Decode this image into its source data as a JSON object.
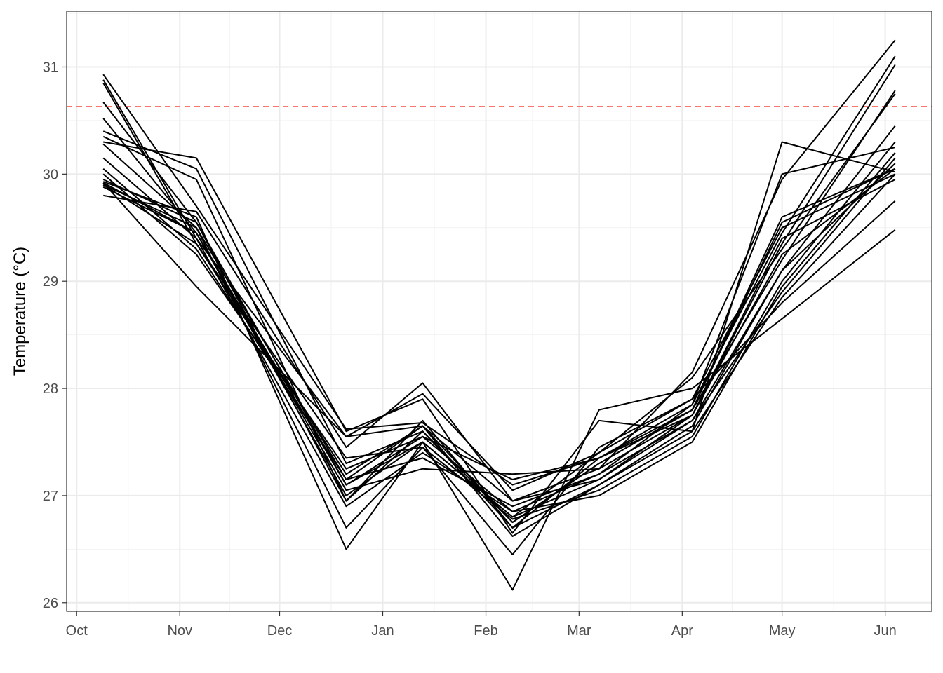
{
  "chart_data": {
    "type": "line",
    "title": "",
    "xlabel": "",
    "ylabel": "Temperature (°C)",
    "x_ticks": [
      "Oct",
      "Nov",
      "Dec",
      "Jan",
      "Feb",
      "Mar",
      "Apr",
      "May",
      "Jun"
    ],
    "y_ticks": [
      "26",
      "27",
      "28",
      "29",
      "30",
      "31"
    ],
    "ylim": [
      25.92,
      31.52
    ],
    "xlim": [
      "2020-09-28",
      "2021-06-15"
    ],
    "grid": true,
    "legend": "none",
    "threshold": {
      "value": 30.63,
      "color": "#f8766d",
      "style": "dashed"
    },
    "series_color": "#000000",
    "x": [
      "2020-10-09",
      "2020-11-06",
      "2020-12-21",
      "2021-01-13",
      "2021-02-09",
      "2021-03-07",
      "2021-04-04",
      "2021-05-01",
      "2021-06-04"
    ],
    "series": [
      {
        "values": [
          30.93,
          29.7,
          27.62,
          27.68,
          27.1,
          27.35,
          27.8,
          29.55,
          30.05
        ]
      },
      {
        "values": [
          30.88,
          29.4,
          27.55,
          27.95,
          27.05,
          27.4,
          28.1,
          29.3,
          30.75
        ]
      },
      {
        "values": [
          30.85,
          29.35,
          27.2,
          27.65,
          26.95,
          27.25,
          28.15,
          29.95,
          31.25
        ]
      },
      {
        "values": [
          30.67,
          29.55,
          27.1,
          27.55,
          26.85,
          27.2,
          27.85,
          29.45,
          31.1
        ]
      },
      {
        "values": [
          30.52,
          29.45,
          27.0,
          27.5,
          26.8,
          27.15,
          27.75,
          29.35,
          31.02
        ]
      },
      {
        "values": [
          30.4,
          30.05,
          27.3,
          27.6,
          26.75,
          27.3,
          27.8,
          29.2,
          30.78
        ]
      },
      {
        "values": [
          30.35,
          29.95,
          26.95,
          27.7,
          26.7,
          27.1,
          27.65,
          29.1,
          30.45
        ]
      },
      {
        "values": [
          30.3,
          30.15,
          27.6,
          27.9,
          26.65,
          27.7,
          27.6,
          30.3,
          30.02
        ]
      },
      {
        "values": [
          30.28,
          29.5,
          26.7,
          27.45,
          26.78,
          27.05,
          27.55,
          29.0,
          30.3
        ]
      },
      {
        "values": [
          30.15,
          29.4,
          26.9,
          27.4,
          26.85,
          27.0,
          27.5,
          28.95,
          30.2
        ]
      },
      {
        "values": [
          30.05,
          29.3,
          27.15,
          27.35,
          26.9,
          27.2,
          27.7,
          28.9,
          30.15
        ]
      },
      {
        "values": [
          30.0,
          29.25,
          27.25,
          27.55,
          27.15,
          27.35,
          27.85,
          30.0,
          30.25
        ]
      },
      {
        "values": [
          29.93,
          29.6,
          26.5,
          27.5,
          26.12,
          27.8,
          28.0,
          28.65,
          29.48
        ]
      },
      {
        "values": [
          29.9,
          29.35,
          27.35,
          27.45,
          26.45,
          27.45,
          27.9,
          28.8,
          29.75
        ]
      },
      {
        "values": [
          29.88,
          29.45,
          27.05,
          27.25,
          27.2,
          27.25,
          27.75,
          29.4,
          29.95
        ]
      },
      {
        "values": [
          29.8,
          29.65,
          27.45,
          28.05,
          26.95,
          27.15,
          27.7,
          29.1,
          30.1
        ]
      },
      {
        "values": [
          29.92,
          28.95,
          27.55,
          27.65,
          26.62,
          27.1,
          27.6,
          28.85,
          30.0
        ]
      },
      {
        "values": [
          29.95,
          29.55,
          26.95,
          27.6,
          26.7,
          27.35,
          27.75,
          29.25,
          30.05
        ]
      },
      {
        "values": [
          29.9,
          29.5,
          27.15,
          27.65,
          26.75,
          27.3,
          27.8,
          29.6,
          30.05
        ]
      },
      {
        "values": [
          29.92,
          29.45,
          27.1,
          27.5,
          26.8,
          27.4,
          27.9,
          29.5,
          30.0
        ]
      }
    ]
  }
}
